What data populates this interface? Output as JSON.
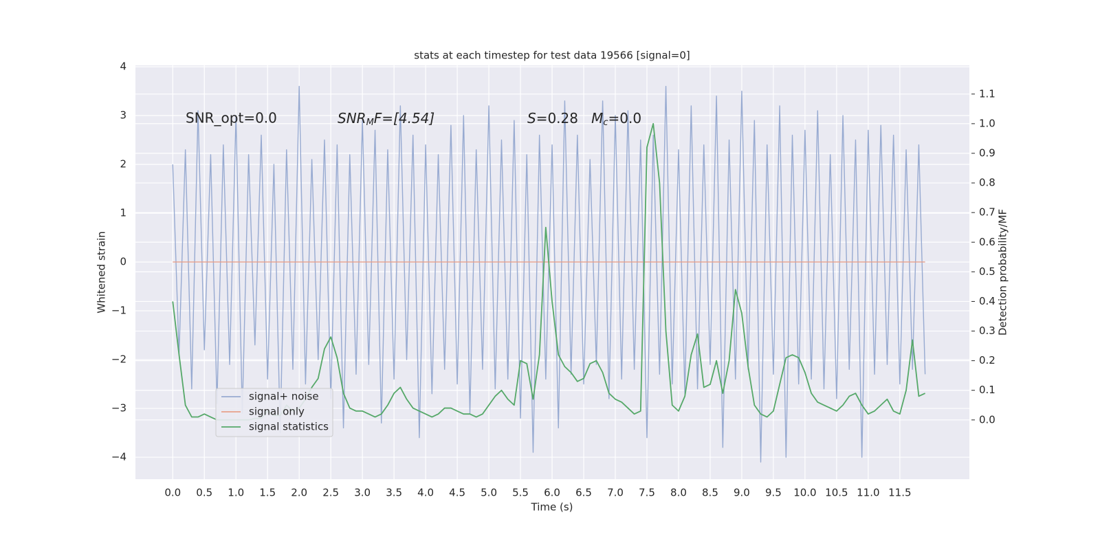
{
  "chart_data": {
    "type": "line",
    "title": "stats at each timestep for test data 19566 [signal=0]",
    "xlabel": "Time (s)",
    "ylabel": "Whitened strain",
    "y2label": "Detection probability/MF",
    "annotations": [
      [
        "SNR_opt=0.0"
      ],
      [
        "SNR",
        "M",
        "F=[4.54]"
      ],
      [
        "S",
        "=0.28   ",
        "M",
        "c",
        "=0.0"
      ]
    ],
    "grid": true,
    "legend_loc": "lower left",
    "xlim": [
      -0.59,
      12.6
    ],
    "ylim": [
      -4.45,
      4.03
    ],
    "y2lim": [
      -0.2,
      1.197
    ],
    "xticks": [
      {
        "value": 0,
        "label": "0.0"
      },
      {
        "value": 0.5,
        "label": "0.5"
      },
      {
        "value": 1,
        "label": "1.0"
      },
      {
        "value": 1.5,
        "label": "1.5"
      },
      {
        "value": 2,
        "label": "2.0"
      },
      {
        "value": 2.5,
        "label": "2.5"
      },
      {
        "value": 3,
        "label": "3.0"
      },
      {
        "value": 3.5,
        "label": "3.5"
      },
      {
        "value": 4,
        "label": "4.0"
      },
      {
        "value": 4.5,
        "label": "4.5"
      },
      {
        "value": 5,
        "label": "5.0"
      },
      {
        "value": 5.5,
        "label": "5.5"
      },
      {
        "value": 6,
        "label": "6.0"
      },
      {
        "value": 6.5,
        "label": "6.5"
      },
      {
        "value": 7,
        "label": "7.0"
      },
      {
        "value": 7.5,
        "label": "7.5"
      },
      {
        "value": 8,
        "label": "8.0"
      },
      {
        "value": 8.5,
        "label": "8.5"
      },
      {
        "value": 9,
        "label": "9.0"
      },
      {
        "value": 9.5,
        "label": "9.5"
      },
      {
        "value": 10,
        "label": "10.0"
      },
      {
        "value": 10.5,
        "label": "10.5"
      },
      {
        "value": 11,
        "label": "11.0"
      },
      {
        "value": 11.5,
        "label": "11.5"
      }
    ],
    "yticks": [
      {
        "value": -4,
        "label": "−4"
      },
      {
        "value": -3,
        "label": "−3"
      },
      {
        "value": -2,
        "label": "−2"
      },
      {
        "value": -1,
        "label": "−1"
      },
      0,
      1,
      2,
      3,
      4
    ],
    "y2ticks": [
      {
        "value": 0,
        "label": "0.0"
      },
      {
        "value": 0.1,
        "label": "0.1"
      },
      {
        "value": 0.2,
        "label": "0.2"
      },
      {
        "value": 0.3,
        "label": "0.3"
      },
      {
        "value": 0.4,
        "label": "0.4"
      },
      {
        "value": 0.5,
        "label": "0.5"
      },
      {
        "value": 0.6,
        "label": "0.6"
      },
      {
        "value": 0.7,
        "label": "0.7"
      },
      {
        "value": 0.8,
        "label": "0.8"
      },
      {
        "value": 0.9,
        "label": "0.9"
      },
      {
        "value": 1,
        "label": "1.0"
      },
      {
        "value": 1.1,
        "label": "1.1"
      }
    ],
    "x": [
      0,
      0.1,
      0.2,
      0.3,
      0.4,
      0.5,
      0.6,
      0.7,
      0.8,
      0.9,
      1,
      1.1,
      1.2,
      1.3,
      1.4,
      1.5,
      1.6,
      1.7,
      1.8,
      1.9,
      2,
      2.1,
      2.2,
      2.3,
      2.4,
      2.5,
      2.6,
      2.7,
      2.8,
      2.9,
      3,
      3.1,
      3.2,
      3.3,
      3.4,
      3.5,
      3.6,
      3.7,
      3.8,
      3.9,
      4,
      4.1,
      4.2,
      4.3,
      4.4,
      4.5,
      4.6,
      4.7,
      4.8,
      4.9,
      5,
      5.1,
      5.2,
      5.3,
      5.4,
      5.5,
      5.6,
      5.7,
      5.8,
      5.9,
      6,
      6.1,
      6.2,
      6.3,
      6.4,
      6.5,
      6.6,
      6.7,
      6.8,
      6.9,
      7,
      7.1,
      7.2,
      7.3,
      7.4,
      7.5,
      7.6,
      7.7,
      7.8,
      7.9,
      8,
      8.1,
      8.2,
      8.3,
      8.4,
      8.5,
      8.6,
      8.7,
      8.8,
      8.9,
      9,
      9.1,
      9.2,
      9.3,
      9.4,
      9.5,
      9.6,
      9.7,
      9.8,
      9.9,
      10,
      10.1,
      10.2,
      10.3,
      10.4,
      10.5,
      10.6,
      10.7,
      10.8,
      10.9,
      11,
      11.1,
      11.2,
      11.3,
      11.4,
      11.5,
      11.6,
      11.7,
      11.8,
      11.9
    ],
    "series": [
      {
        "name": "signal+ noise",
        "color": "#97aad1",
        "values": [
          2.0,
          -1.9,
          2.3,
          -2.6,
          3.1,
          -1.8,
          2.2,
          -2.9,
          2.4,
          -2.1,
          3.0,
          -3.1,
          2.2,
          -1.7,
          2.6,
          -2.4,
          2.0,
          -3.5,
          2.3,
          -2.2,
          3.6,
          -2.5,
          2.1,
          -2.0,
          2.5,
          -2.8,
          2.4,
          -3.4,
          2.2,
          -2.3,
          2.9,
          -2.1,
          2.7,
          -3.3,
          2.3,
          -2.4,
          3.2,
          -2.0,
          2.6,
          -3.6,
          2.4,
          -2.7,
          2.2,
          -2.2,
          2.8,
          -2.5,
          3.0,
          -3.1,
          2.3,
          -2.2,
          3.2,
          -2.6,
          2.5,
          -2.4,
          2.9,
          -3.2,
          2.2,
          -3.9,
          2.6,
          -2.4,
          2.4,
          -3.4,
          3.3,
          -2.3,
          2.6,
          -2.5,
          2.1,
          -2.1,
          3.3,
          -2.8,
          3.0,
          -2.4,
          3.1,
          -2.2,
          2.5,
          -3.6,
          2.6,
          -2.3,
          3.6,
          -2.5,
          2.3,
          -2.7,
          3.2,
          -2.6,
          2.4,
          -2.1,
          3.4,
          -3.8,
          2.5,
          -2.4,
          3.5,
          -2.2,
          2.9,
          -4.1,
          2.4,
          -2.3,
          3.2,
          -4.0,
          2.6,
          -2.5,
          2.7,
          -2.4,
          3.1,
          -2.6,
          2.2,
          -2.8,
          3.0,
          -2.2,
          2.5,
          -4.0,
          2.7,
          -2.3,
          2.8,
          -2.1,
          2.6,
          -2.5,
          2.3,
          -2.2,
          2.4,
          -2.3
        ]
      },
      {
        "name": "signal only",
        "color": "#e8a08a",
        "values": [
          0,
          0,
          0,
          0,
          0,
          0,
          0,
          0,
          0,
          0,
          0,
          0,
          0,
          0,
          0,
          0,
          0,
          0,
          0,
          0,
          0,
          0,
          0,
          0,
          0,
          0,
          0,
          0,
          0,
          0,
          0,
          0,
          0,
          0,
          0,
          0,
          0,
          0,
          0,
          0,
          0,
          0,
          0,
          0,
          0,
          0,
          0,
          0,
          0,
          0,
          0,
          0,
          0,
          0,
          0,
          0,
          0,
          0,
          0,
          0,
          0,
          0,
          0,
          0,
          0,
          0,
          0,
          0,
          0,
          0,
          0,
          0,
          0,
          0,
          0,
          0,
          0,
          0,
          0,
          0,
          0,
          0,
          0,
          0,
          0,
          0,
          0,
          0,
          0,
          0,
          0,
          0,
          0,
          0,
          0,
          0,
          0,
          0,
          0,
          0,
          0,
          0,
          0,
          0,
          0,
          0,
          0,
          0,
          0,
          0,
          0,
          0,
          0,
          0,
          0,
          0,
          0,
          0,
          0,
          0
        ]
      },
      {
        "name": "signal statistics",
        "color": "#55a868",
        "axis": "y2",
        "values": [
          0.4,
          0.22,
          0.05,
          0.01,
          0.01,
          0.02,
          0.01,
          0,
          0,
          0,
          0,
          0,
          0,
          0.005,
          0.005,
          0.03,
          0.015,
          0.015,
          0.05,
          0.03,
          0.04,
          0.07,
          0.11,
          0.14,
          0.24,
          0.28,
          0.21,
          0.09,
          0.04,
          0.03,
          0.03,
          0.02,
          0.01,
          0.02,
          0.05,
          0.09,
          0.11,
          0.07,
          0.04,
          0.03,
          0.02,
          0.01,
          0.02,
          0.04,
          0.04,
          0.03,
          0.02,
          0.02,
          0.01,
          0.02,
          0.05,
          0.08,
          0.1,
          0.07,
          0.05,
          0.2,
          0.19,
          0.07,
          0.22,
          0.65,
          0.4,
          0.22,
          0.18,
          0.16,
          0.13,
          0.14,
          0.19,
          0.2,
          0.16,
          0.09,
          0.07,
          0.06,
          0.04,
          0.02,
          0.03,
          0.92,
          1.0,
          0.8,
          0.3,
          0.05,
          0.03,
          0.08,
          0.22,
          0.29,
          0.11,
          0.12,
          0.2,
          0.09,
          0.2,
          0.44,
          0.36,
          0.18,
          0.05,
          0.02,
          0.01,
          0.03,
          0.12,
          0.21,
          0.22,
          0.21,
          0.16,
          0.09,
          0.06,
          0.05,
          0.04,
          0.03,
          0.05,
          0.08,
          0.09,
          0.05,
          0.02,
          0.03,
          0.05,
          0.07,
          0.03,
          0.02,
          0.1,
          0.27,
          0.08,
          0.09
        ]
      }
    ]
  }
}
